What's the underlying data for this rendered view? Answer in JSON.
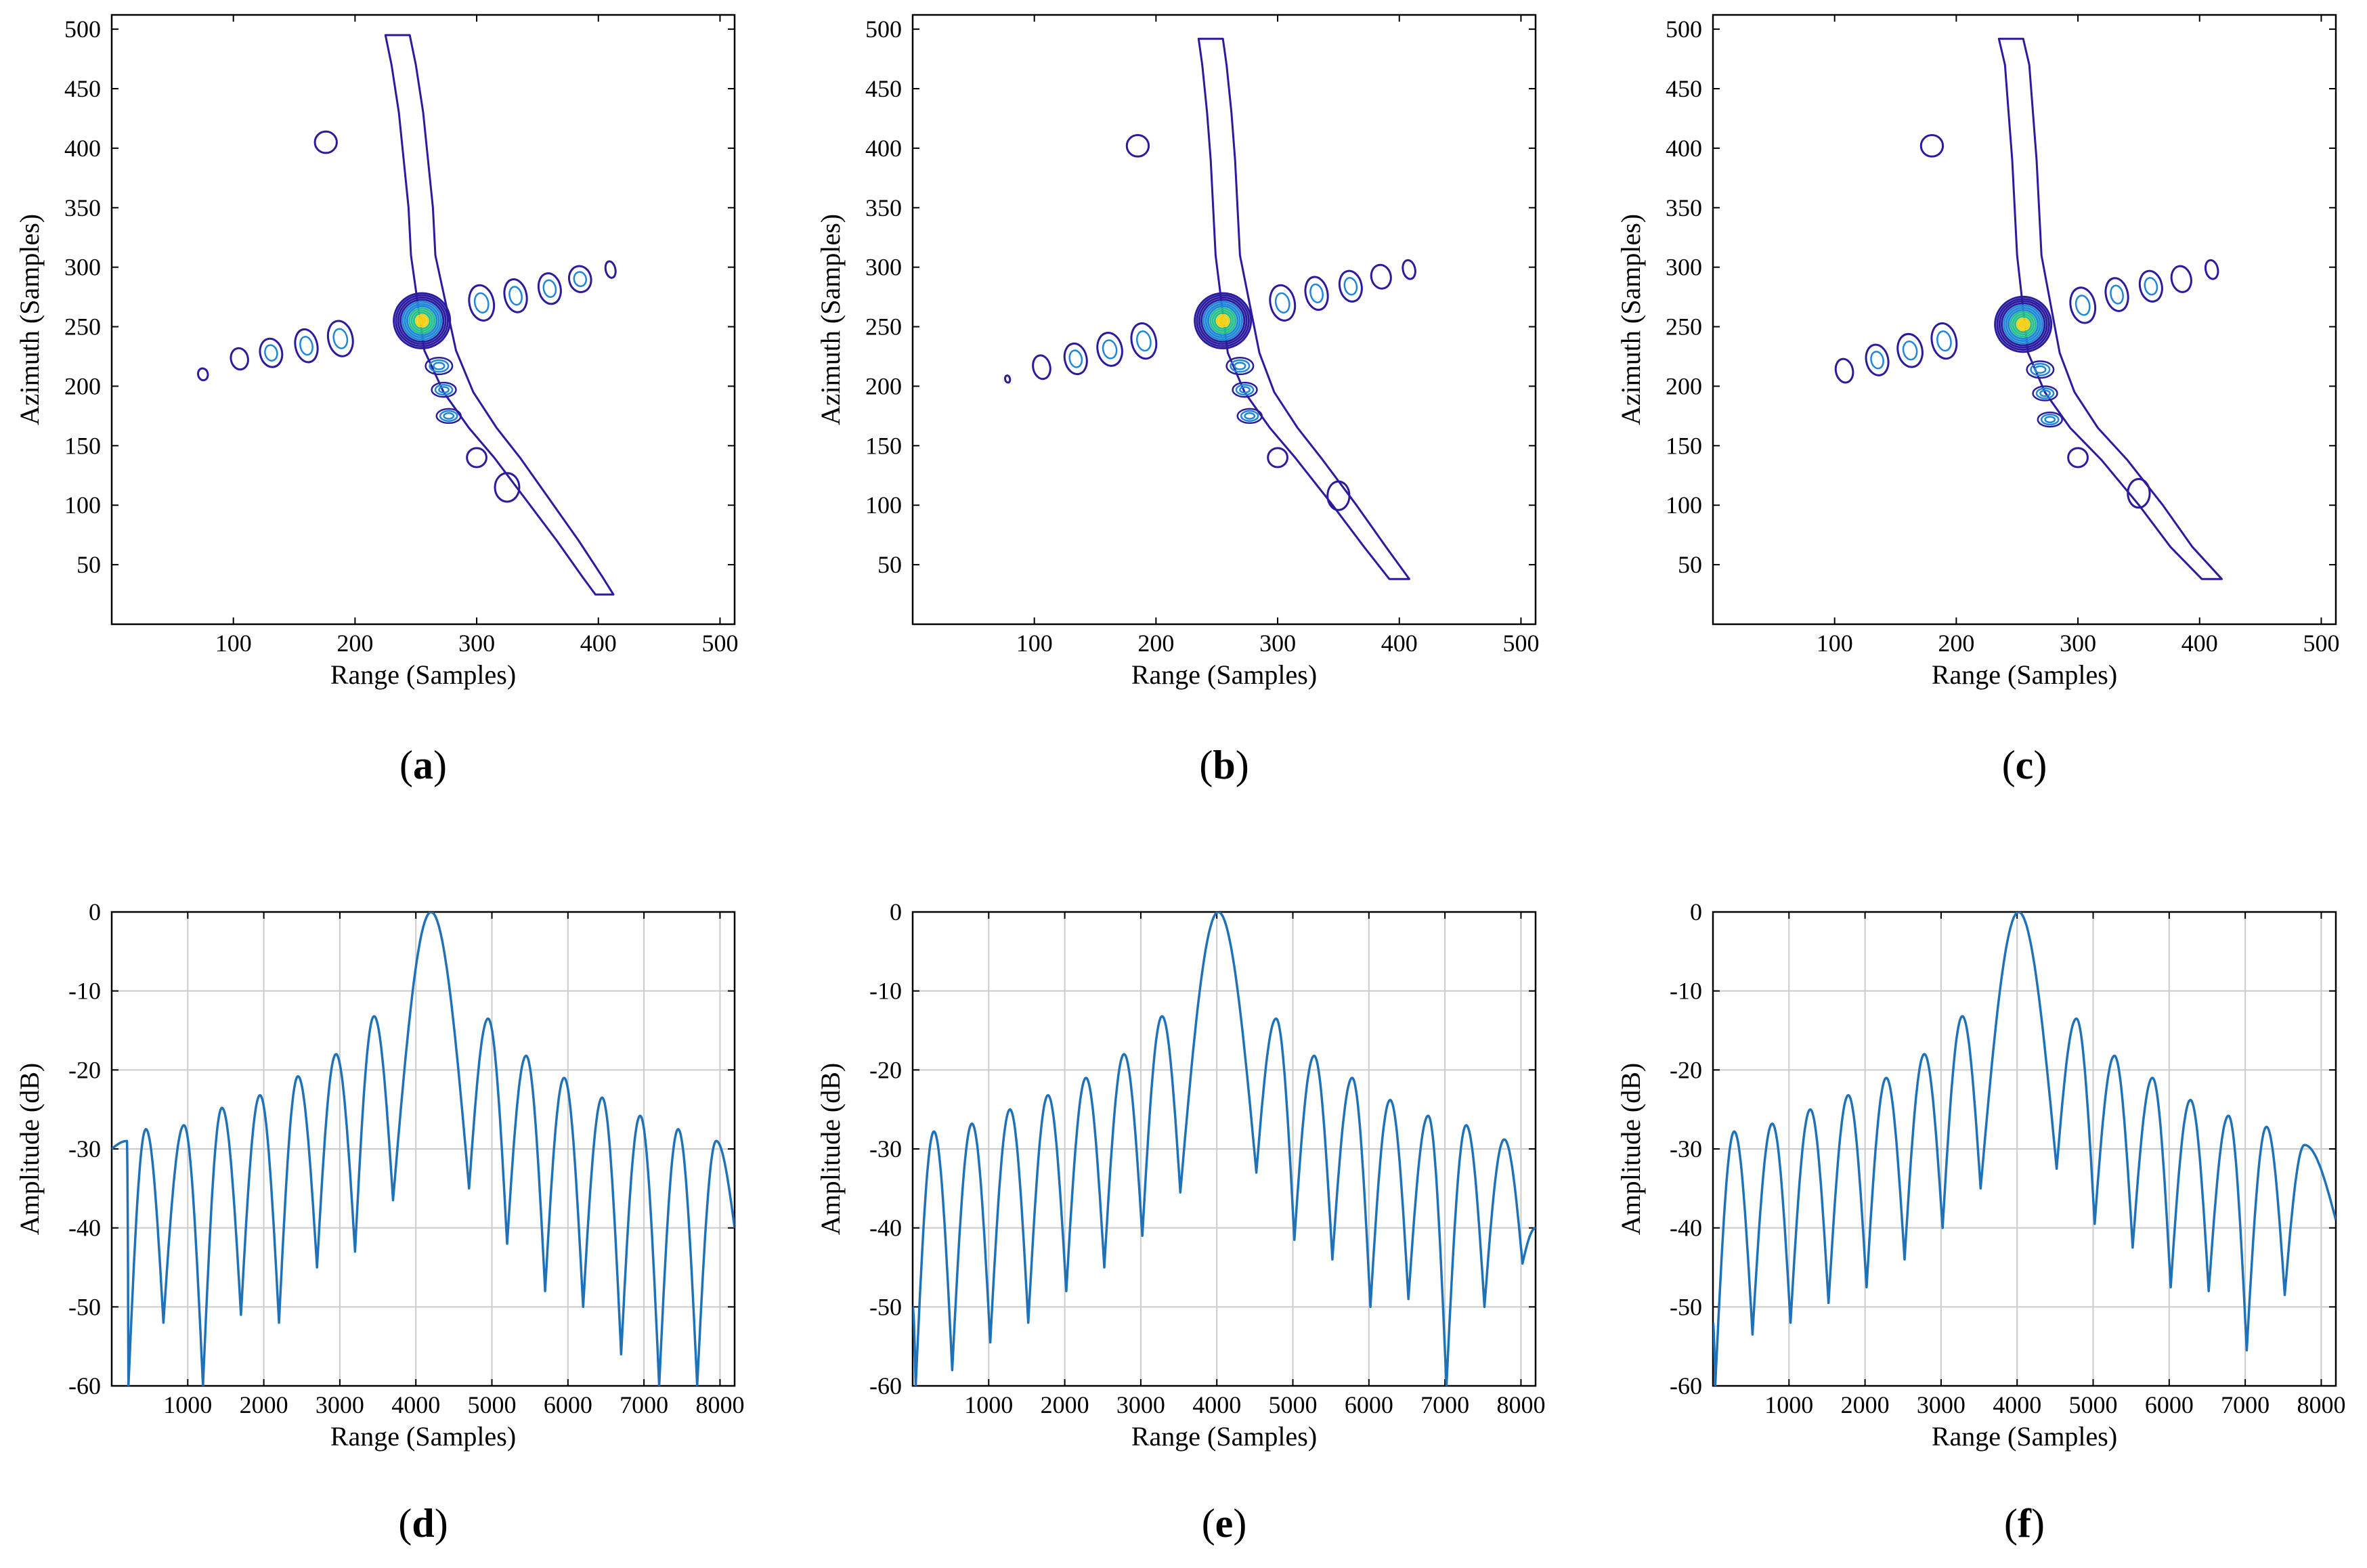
{
  "colors": {
    "contour_low": "#2b1b9e",
    "contour_mid": "#1f87d8",
    "contour_high": "#28c08a",
    "contour_peak": "#f6d11a",
    "line": "#1f72b8",
    "grid": "#cccccc"
  },
  "chart_data": [
    {
      "id": "a",
      "type": "contour",
      "panel_label": "a",
      "xlabel": "Range (Samples)",
      "ylabel": "Azimuth (Samples)",
      "xlim": [
        0,
        512
      ],
      "ylim": [
        0,
        512
      ],
      "xticks": [
        "100",
        "200",
        "300",
        "400",
        "500"
      ],
      "yticks": [
        "50",
        "100",
        "150",
        "200",
        "250",
        "300",
        "350",
        "400",
        "450",
        "500"
      ],
      "peak": [
        255,
        255
      ],
      "range_sidelobes": [
        [
          75,
          210,
          4,
          5
        ],
        [
          105,
          223,
          7,
          9
        ],
        [
          131,
          228,
          9,
          12
        ],
        [
          160,
          234,
          9,
          14
        ],
        [
          188,
          240,
          10,
          15
        ],
        [
          304,
          270,
          10,
          15
        ],
        [
          332,
          276,
          9,
          14
        ],
        [
          360,
          282,
          9,
          13
        ],
        [
          385,
          290,
          9,
          11
        ],
        [
          410,
          298,
          4,
          7
        ]
      ],
      "azimuth_tail": [
        [
          235,
          495
        ],
        [
          240,
          470
        ],
        [
          246,
          430
        ],
        [
          250,
          390
        ],
        [
          254,
          350
        ],
        [
          256,
          310
        ],
        [
          270,
          230
        ],
        [
          285,
          195
        ],
        [
          305,
          165
        ],
        [
          325,
          140
        ],
        [
          350,
          105
        ],
        [
          375,
          70
        ],
        [
          395,
          40
        ],
        [
          405,
          25
        ]
      ],
      "islands": [
        [
          176,
          405,
          9,
          9
        ],
        [
          325,
          115,
          10,
          12
        ],
        [
          300,
          140,
          8,
          8
        ]
      ]
    },
    {
      "id": "b",
      "type": "contour",
      "panel_label": "b",
      "xlabel": "Range (Samples)",
      "ylabel": "Azimuth (Samples)",
      "xlim": [
        0,
        512
      ],
      "ylim": [
        0,
        512
      ],
      "xticks": [
        "100",
        "200",
        "300",
        "400",
        "500"
      ],
      "yticks": [
        "50",
        "100",
        "150",
        "200",
        "250",
        "300",
        "350",
        "400",
        "450",
        "500"
      ],
      "peak": [
        255,
        255
      ],
      "range_sidelobes": [
        [
          78,
          206,
          2,
          3
        ],
        [
          106,
          216,
          7,
          10
        ],
        [
          134,
          223,
          9,
          13
        ],
        [
          162,
          231,
          10,
          14
        ],
        [
          190,
          238,
          10,
          15
        ],
        [
          304,
          270,
          10,
          15
        ],
        [
          332,
          278,
          9,
          14
        ],
        [
          360,
          284,
          9,
          13
        ],
        [
          385,
          292,
          8,
          10
        ],
        [
          408,
          298,
          5,
          8
        ]
      ],
      "azimuth_tail": [
        [
          245,
          492
        ],
        [
          248,
          470
        ],
        [
          252,
          430
        ],
        [
          255,
          390
        ],
        [
          257,
          350
        ],
        [
          259,
          310
        ],
        [
          272,
          228
        ],
        [
          285,
          195
        ],
        [
          305,
          165
        ],
        [
          325,
          140
        ],
        [
          355,
          100
        ],
        [
          380,
          65
        ],
        [
          400,
          38
        ]
      ],
      "islands": [
        [
          185,
          402,
          9,
          9
        ],
        [
          350,
          108,
          9,
          12
        ],
        [
          300,
          140,
          8,
          8
        ]
      ]
    },
    {
      "id": "c",
      "type": "contour",
      "panel_label": "c",
      "xlabel": "Range (Samples)",
      "ylabel": "Azimuth (Samples)",
      "xlim": [
        0,
        512
      ],
      "ylim": [
        0,
        512
      ],
      "xticks": [
        "100",
        "200",
        "300",
        "400",
        "500"
      ],
      "yticks": [
        "50",
        "100",
        "150",
        "200",
        "250",
        "300",
        "350",
        "400",
        "450",
        "500"
      ],
      "peak": [
        255,
        252
      ],
      "range_sidelobes": [
        [
          108,
          213,
          7,
          10
        ],
        [
          135,
          222,
          9,
          13
        ],
        [
          162,
          230,
          10,
          14
        ],
        [
          190,
          238,
          10,
          15
        ],
        [
          304,
          268,
          10,
          15
        ],
        [
          332,
          277,
          9,
          14
        ],
        [
          360,
          284,
          9,
          13
        ],
        [
          385,
          290,
          8,
          11
        ],
        [
          410,
          298,
          5,
          8
        ]
      ],
      "azimuth_tail": [
        [
          245,
          492
        ],
        [
          250,
          470
        ],
        [
          253,
          430
        ],
        [
          256,
          390
        ],
        [
          258,
          350
        ],
        [
          260,
          310
        ],
        [
          272,
          228
        ],
        [
          285,
          195
        ],
        [
          305,
          165
        ],
        [
          330,
          138
        ],
        [
          360,
          100
        ],
        [
          385,
          65
        ],
        [
          410,
          38
        ]
      ],
      "islands": [
        [
          180,
          402,
          9,
          9
        ],
        [
          350,
          110,
          9,
          12
        ],
        [
          300,
          140,
          8,
          8
        ]
      ]
    },
    {
      "id": "d",
      "type": "line",
      "panel_label": "d",
      "xlabel": "Range (Samples)",
      "ylabel": "Amplitude (dB)",
      "xlim": [
        0,
        8192
      ],
      "ylim": [
        -60,
        0
      ],
      "xticks": [
        "1000",
        "2000",
        "3000",
        "4000",
        "5000",
        "6000",
        "7000",
        "8000"
      ],
      "yticks": [
        "0",
        "-10",
        "-20",
        "-30",
        "-40",
        "-50",
        "-60"
      ],
      "x": [
        0,
        200,
        220,
        450,
        680,
        950,
        1200,
        1450,
        1700,
        1950,
        2200,
        2450,
        2700,
        2950,
        3200,
        3450,
        3700,
        4200,
        4700,
        4950,
        5200,
        5450,
        5700,
        5950,
        6200,
        6450,
        6700,
        6950,
        7200,
        7450,
        7700,
        7950,
        8192
      ],
      "y": [
        -30,
        -29,
        -60,
        -27.5,
        -52,
        -27,
        -60,
        -24.8,
        -51,
        -23.2,
        -52,
        -20.8,
        -45,
        -18,
        -43,
        -13.2,
        -36.5,
        0,
        -35,
        -13.5,
        -42,
        -18.2,
        -48,
        -21,
        -50,
        -23.5,
        -56,
        -25.8,
        -60,
        -27.5,
        -60,
        -29,
        -40
      ]
    },
    {
      "id": "e",
      "type": "line",
      "panel_label": "e",
      "xlabel": "Range (Samples)",
      "ylabel": "Amplitude (dB)",
      "xlim": [
        0,
        8192
      ],
      "ylim": [
        -60,
        0
      ],
      "xticks": [
        "1000",
        "2000",
        "3000",
        "4000",
        "5000",
        "6000",
        "7000",
        "8000"
      ],
      "yticks": [
        "0",
        "-10",
        "-20",
        "-30",
        "-40",
        "-50",
        "-60"
      ],
      "x": [
        0,
        40,
        280,
        520,
        780,
        1020,
        1280,
        1520,
        1780,
        2020,
        2280,
        2520,
        2780,
        3020,
        3280,
        3520,
        4020,
        4520,
        4780,
        5020,
        5280,
        5520,
        5780,
        6020,
        6280,
        6520,
        6780,
        7020,
        7280,
        7520,
        7780,
        8020,
        8192
      ],
      "y": [
        -50,
        -60,
        -27.8,
        -58,
        -26.8,
        -54.5,
        -25,
        -52,
        -23.2,
        -48,
        -21,
        -45,
        -18,
        -41,
        -13.2,
        -35.5,
        0,
        -33,
        -13.5,
        -41.5,
        -18.2,
        -44,
        -21,
        -50,
        -23.8,
        -49,
        -25.8,
        -60,
        -27,
        -50,
        -28.8,
        -44.5,
        -40
      ]
    },
    {
      "id": "f",
      "type": "line",
      "panel_label": "f",
      "xlabel": "Range (Samples)",
      "ylabel": "Amplitude (dB)",
      "xlim": [
        0,
        8192
      ],
      "ylim": [
        -60,
        0
      ],
      "xticks": [
        "1000",
        "2000",
        "3000",
        "4000",
        "5000",
        "6000",
        "7000",
        "8000"
      ],
      "yticks": [
        "0",
        "-10",
        "-20",
        "-30",
        "-40",
        "-50",
        "-60"
      ],
      "x": [
        0,
        30,
        280,
        520,
        780,
        1020,
        1280,
        1520,
        1780,
        2020,
        2280,
        2520,
        2780,
        3020,
        3280,
        3520,
        4020,
        4520,
        4780,
        5020,
        5280,
        5520,
        5780,
        6020,
        6280,
        6520,
        6780,
        7020,
        7280,
        7520,
        7780,
        8192
      ],
      "y": [
        -52,
        -60,
        -27.8,
        -53.5,
        -26.8,
        -52,
        -25,
        -49.5,
        -23.2,
        -47.5,
        -21,
        -44,
        -18,
        -40,
        -13.2,
        -35,
        0,
        -32.5,
        -13.5,
        -39.5,
        -18.2,
        -42.5,
        -21,
        -47.5,
        -23.8,
        -48,
        -25.8,
        -55.5,
        -27.2,
        -48.5,
        -29.5,
        -39
      ]
    }
  ]
}
